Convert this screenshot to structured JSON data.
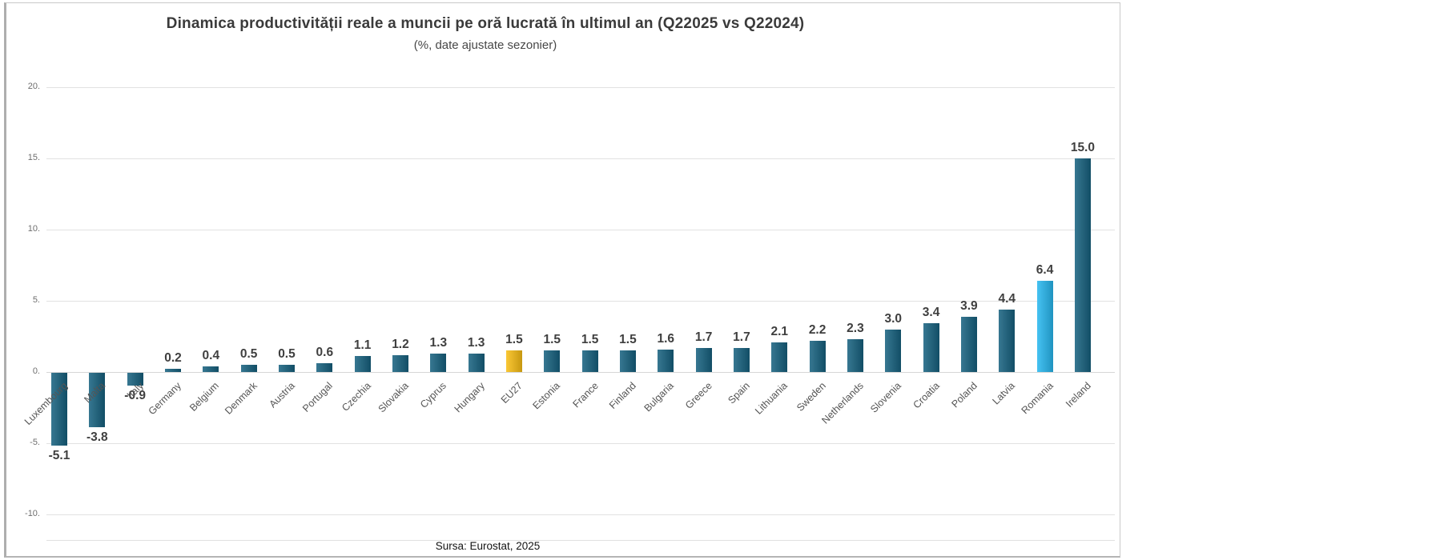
{
  "chart": {
    "title": "Dinamica productivității reale a muncii pe oră lucrată  în ultimul an (Q22025 vs Q22024)",
    "subtitle": "(%, date ajustate sezonier)",
    "source": "Sursa: Eurostat, 2025"
  },
  "chart_data": {
    "type": "bar",
    "title": "Dinamica productivității reale a muncii pe oră lucrată  în ultimul an (Q22025 vs Q22024)",
    "subtitle": "(%, date ajustate sezonier)",
    "source": "Sursa: Eurostat, 2025",
    "categories": [
      "Luxembourg",
      "Malta",
      "Italy",
      "Germany",
      "Belgium",
      "Denmark",
      "Austria",
      "Portugal",
      "Czechia",
      "Slovakia",
      "Cyprus",
      "Hungary",
      "EU27",
      "Estonia",
      "France",
      "Finland",
      "Bulgaria",
      "Greece",
      "Spain",
      "Lithuania",
      "Sweden",
      "Netherlands",
      "Slovenia",
      "Croatia",
      "Poland",
      "Latvia",
      "Romania",
      "Ireland"
    ],
    "values": [
      -5.1,
      -3.8,
      -0.9,
      0.2,
      0.4,
      0.5,
      0.5,
      0.6,
      1.1,
      1.2,
      1.3,
      1.3,
      1.5,
      1.5,
      1.5,
      1.5,
      1.6,
      1.7,
      1.7,
      2.1,
      2.2,
      2.3,
      3.0,
      3.4,
      3.9,
      4.4,
      6.4,
      15.0
    ],
    "value_labels": [
      "-5.1",
      "-3.8",
      "-0.9",
      "0.2",
      "0.4",
      "0.5",
      "0.5",
      "0.6",
      "1.1",
      "1.2",
      "1.3",
      "1.3",
      "1.5",
      "1.5",
      "1.5",
      "1.5",
      "1.6",
      "1.7",
      "1.7",
      "2.1",
      "2.2",
      "2.3",
      "3.0",
      "3.4",
      "3.9",
      "4.4",
      "6.4",
      "15.0"
    ],
    "ylim": [
      -10,
      20
    ],
    "y_ticks": [
      "20.",
      "15.",
      "10.",
      "5.",
      "0.",
      "-5.",
      "-10."
    ],
    "y_tick_values": [
      20,
      15,
      10,
      5,
      0,
      -5,
      -10
    ],
    "grid": true,
    "legend": "none",
    "bar_color_default": "#16617F",
    "highlight_colors": {
      "EU27": "#F9BE14",
      "Romania": "#27B8F0"
    }
  }
}
